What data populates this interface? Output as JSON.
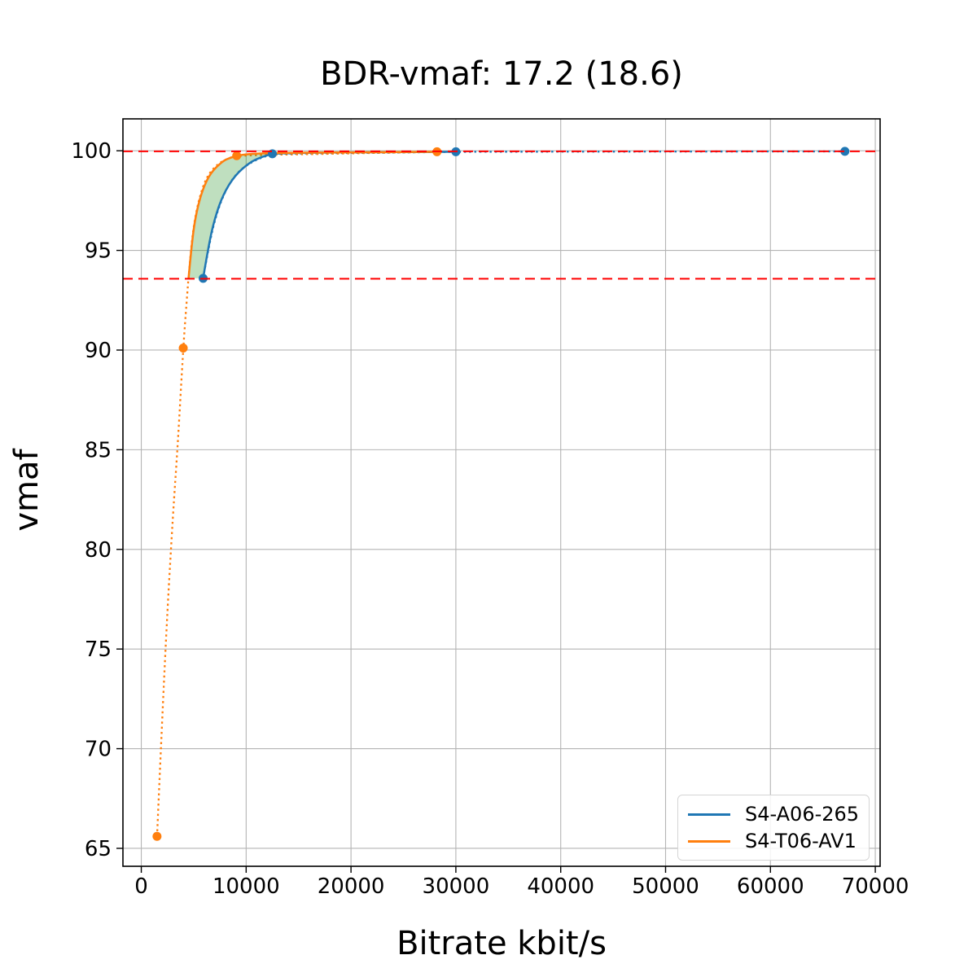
{
  "title": "BDR-vmaf: 17.2 (18.6)",
  "axes": {
    "xlabel": "Bitrate kbit/s",
    "ylabel": "vmaf"
  },
  "legend": {
    "position": "lower right",
    "items": [
      {
        "label": "S4-A06-265",
        "color": "#1f77b4"
      },
      {
        "label": "S4-T06-AV1",
        "color": "#ff7f0e"
      }
    ]
  },
  "colors": {
    "grid": "#b4b4b4",
    "spine": "#000000",
    "bound_line": "#ff0000",
    "fill_between": "rgba(0,128,0,0.25)",
    "background": "#ffffff"
  },
  "chart_data": {
    "type": "line",
    "title": "BDR-vmaf: 17.2 (18.6)",
    "xlabel": "Bitrate kbit/s",
    "ylabel": "vmaf",
    "xlim": [
      -1750,
      70460
    ],
    "ylim": [
      64.1,
      101.6
    ],
    "xticks": [
      0,
      10000,
      20000,
      30000,
      40000,
      50000,
      60000,
      70000
    ],
    "yticks": [
      65,
      70,
      75,
      80,
      85,
      90,
      95,
      100
    ],
    "grid": true,
    "legend_position": "lower right",
    "hlines": [
      {
        "y": 99.97,
        "color": "#ff0000",
        "style": "dashed",
        "name": "upper-bound-line"
      },
      {
        "y": 93.58,
        "color": "#ff0000",
        "style": "dashed",
        "name": "lower-bound-line"
      }
    ],
    "series": [
      {
        "name": "S4-A06-265",
        "color": "#1f77b4",
        "marker": "circle",
        "points": {
          "x": [
            5900,
            12500,
            30000,
            67100
          ],
          "y": [
            93.6,
            99.85,
            99.95,
            99.97
          ]
        },
        "dotted_path": [
          [
            5900,
            93.6
          ],
          [
            6500,
            95.4
          ],
          [
            7200,
            96.9
          ],
          [
            8100,
            98.1
          ],
          [
            9200,
            98.95
          ],
          [
            10700,
            99.5
          ],
          [
            12500,
            99.85
          ],
          [
            15000,
            99.86
          ],
          [
            18000,
            99.875
          ],
          [
            22000,
            99.9
          ],
          [
            26000,
            99.92
          ],
          [
            30000,
            99.95
          ],
          [
            40000,
            99.955
          ],
          [
            50000,
            99.96
          ],
          [
            58000,
            99.965
          ],
          [
            67100,
            99.97
          ]
        ],
        "solid_path": [
          [
            5900,
            93.6
          ],
          [
            6400,
            95.2
          ],
          [
            7000,
            96.6
          ],
          [
            7800,
            97.8
          ],
          [
            8900,
            98.75
          ],
          [
            10300,
            99.4
          ],
          [
            11400,
            99.68
          ],
          [
            12500,
            99.85
          ],
          [
            14500,
            99.89
          ],
          [
            17000,
            99.905
          ],
          [
            21000,
            99.92
          ],
          [
            25000,
            99.935
          ],
          [
            30000,
            99.95
          ]
        ]
      },
      {
        "name": "S4-T06-AV1",
        "color": "#ff7f0e",
        "marker": "circle",
        "points": {
          "x": [
            1500,
            4000,
            9100,
            28200
          ],
          "y": [
            65.6,
            90.1,
            99.75,
            99.95
          ]
        },
        "dotted_path": [
          [
            1500,
            65.6
          ],
          [
            2000,
            71.6
          ],
          [
            2500,
            77.0
          ],
          [
            3000,
            81.6
          ],
          [
            3500,
            85.4
          ],
          [
            4000,
            90.1
          ],
          [
            4320,
            92.4
          ],
          [
            4560,
            94.0
          ],
          [
            4900,
            95.9
          ],
          [
            5400,
            97.4
          ],
          [
            6200,
            98.7
          ],
          [
            7300,
            99.35
          ],
          [
            8200,
            99.6
          ],
          [
            9100,
            99.75
          ],
          [
            11500,
            99.79
          ],
          [
            15000,
            99.82
          ],
          [
            19000,
            99.86
          ],
          [
            23500,
            99.9
          ],
          [
            28200,
            99.95
          ]
        ],
        "solid_path": [
          [
            4510,
            93.6
          ],
          [
            4800,
            95.3
          ],
          [
            5200,
            96.8
          ],
          [
            5800,
            98.0
          ],
          [
            6600,
            98.9
          ],
          [
            7800,
            99.5
          ],
          [
            8500,
            99.65
          ],
          [
            9100,
            99.75
          ],
          [
            10200,
            99.84
          ],
          [
            11800,
            99.875
          ],
          [
            14000,
            99.895
          ],
          [
            18000,
            99.915
          ],
          [
            23000,
            99.93
          ],
          [
            28200,
            99.95
          ]
        ]
      }
    ],
    "fill_between": {
      "color": "rgba(0,128,0,0.25)",
      "polygon": [
        [
          4510,
          93.6
        ],
        [
          4800,
          95.3
        ],
        [
          5200,
          96.8
        ],
        [
          5800,
          98.0
        ],
        [
          6600,
          98.9
        ],
        [
          7800,
          99.5
        ],
        [
          9100,
          99.75
        ],
        [
          10200,
          99.84
        ],
        [
          11800,
          99.875
        ],
        [
          13200,
          99.885
        ],
        [
          13200,
          99.86
        ],
        [
          12500,
          99.85
        ],
        [
          11400,
          99.68
        ],
        [
          10300,
          99.4
        ],
        [
          8900,
          98.75
        ],
        [
          7800,
          97.8
        ],
        [
          7000,
          96.6
        ],
        [
          6400,
          95.2
        ],
        [
          5900,
          93.6
        ]
      ]
    }
  }
}
